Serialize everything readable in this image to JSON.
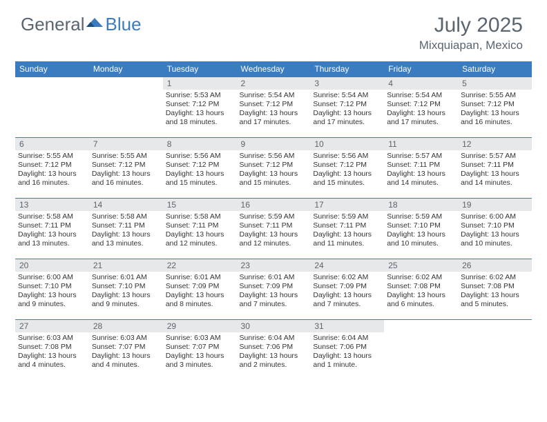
{
  "brand": {
    "part1": "General",
    "part2": "Blue"
  },
  "title": "July 2025",
  "location": "Mixquiapan, Mexico",
  "colors": {
    "header_bg": "#3b7bbf",
    "header_text": "#ffffff",
    "daynum_bg": "#e7e8e9",
    "text_muted": "#5a6570",
    "body_text": "#333333",
    "row_border": "#3b7bbf",
    "page_bg": "#ffffff"
  },
  "fonts": {
    "month_title_pt": 30,
    "location_pt": 17,
    "weekday_pt": 12,
    "daynum_pt": 12,
    "details_pt": 10.5
  },
  "weekdays": [
    "Sunday",
    "Monday",
    "Tuesday",
    "Wednesday",
    "Thursday",
    "Friday",
    "Saturday"
  ],
  "weeks": [
    [
      null,
      null,
      {
        "day": "1",
        "sunrise": "5:53 AM",
        "sunset": "7:12 PM",
        "daylight": "13 hours and 18 minutes."
      },
      {
        "day": "2",
        "sunrise": "5:54 AM",
        "sunset": "7:12 PM",
        "daylight": "13 hours and 17 minutes."
      },
      {
        "day": "3",
        "sunrise": "5:54 AM",
        "sunset": "7:12 PM",
        "daylight": "13 hours and 17 minutes."
      },
      {
        "day": "4",
        "sunrise": "5:54 AM",
        "sunset": "7:12 PM",
        "daylight": "13 hours and 17 minutes."
      },
      {
        "day": "5",
        "sunrise": "5:55 AM",
        "sunset": "7:12 PM",
        "daylight": "13 hours and 16 minutes."
      }
    ],
    [
      {
        "day": "6",
        "sunrise": "5:55 AM",
        "sunset": "7:12 PM",
        "daylight": "13 hours and 16 minutes."
      },
      {
        "day": "7",
        "sunrise": "5:55 AM",
        "sunset": "7:12 PM",
        "daylight": "13 hours and 16 minutes."
      },
      {
        "day": "8",
        "sunrise": "5:56 AM",
        "sunset": "7:12 PM",
        "daylight": "13 hours and 15 minutes."
      },
      {
        "day": "9",
        "sunrise": "5:56 AM",
        "sunset": "7:12 PM",
        "daylight": "13 hours and 15 minutes."
      },
      {
        "day": "10",
        "sunrise": "5:56 AM",
        "sunset": "7:12 PM",
        "daylight": "13 hours and 15 minutes."
      },
      {
        "day": "11",
        "sunrise": "5:57 AM",
        "sunset": "7:11 PM",
        "daylight": "13 hours and 14 minutes."
      },
      {
        "day": "12",
        "sunrise": "5:57 AM",
        "sunset": "7:11 PM",
        "daylight": "13 hours and 14 minutes."
      }
    ],
    [
      {
        "day": "13",
        "sunrise": "5:58 AM",
        "sunset": "7:11 PM",
        "daylight": "13 hours and 13 minutes."
      },
      {
        "day": "14",
        "sunrise": "5:58 AM",
        "sunset": "7:11 PM",
        "daylight": "13 hours and 13 minutes."
      },
      {
        "day": "15",
        "sunrise": "5:58 AM",
        "sunset": "7:11 PM",
        "daylight": "13 hours and 12 minutes."
      },
      {
        "day": "16",
        "sunrise": "5:59 AM",
        "sunset": "7:11 PM",
        "daylight": "13 hours and 12 minutes."
      },
      {
        "day": "17",
        "sunrise": "5:59 AM",
        "sunset": "7:11 PM",
        "daylight": "13 hours and 11 minutes."
      },
      {
        "day": "18",
        "sunrise": "5:59 AM",
        "sunset": "7:10 PM",
        "daylight": "13 hours and 10 minutes."
      },
      {
        "day": "19",
        "sunrise": "6:00 AM",
        "sunset": "7:10 PM",
        "daylight": "13 hours and 10 minutes."
      }
    ],
    [
      {
        "day": "20",
        "sunrise": "6:00 AM",
        "sunset": "7:10 PM",
        "daylight": "13 hours and 9 minutes."
      },
      {
        "day": "21",
        "sunrise": "6:01 AM",
        "sunset": "7:10 PM",
        "daylight": "13 hours and 9 minutes."
      },
      {
        "day": "22",
        "sunrise": "6:01 AM",
        "sunset": "7:09 PM",
        "daylight": "13 hours and 8 minutes."
      },
      {
        "day": "23",
        "sunrise": "6:01 AM",
        "sunset": "7:09 PM",
        "daylight": "13 hours and 7 minutes."
      },
      {
        "day": "24",
        "sunrise": "6:02 AM",
        "sunset": "7:09 PM",
        "daylight": "13 hours and 7 minutes."
      },
      {
        "day": "25",
        "sunrise": "6:02 AM",
        "sunset": "7:08 PM",
        "daylight": "13 hours and 6 minutes."
      },
      {
        "day": "26",
        "sunrise": "6:02 AM",
        "sunset": "7:08 PM",
        "daylight": "13 hours and 5 minutes."
      }
    ],
    [
      {
        "day": "27",
        "sunrise": "6:03 AM",
        "sunset": "7:08 PM",
        "daylight": "13 hours and 4 minutes."
      },
      {
        "day": "28",
        "sunrise": "6:03 AM",
        "sunset": "7:07 PM",
        "daylight": "13 hours and 4 minutes."
      },
      {
        "day": "29",
        "sunrise": "6:03 AM",
        "sunset": "7:07 PM",
        "daylight": "13 hours and 3 minutes."
      },
      {
        "day": "30",
        "sunrise": "6:04 AM",
        "sunset": "7:06 PM",
        "daylight": "13 hours and 2 minutes."
      },
      {
        "day": "31",
        "sunrise": "6:04 AM",
        "sunset": "7:06 PM",
        "daylight": "13 hours and 1 minute."
      },
      null,
      null
    ]
  ],
  "labels": {
    "sunrise": "Sunrise: ",
    "sunset": "Sunset: ",
    "daylight": "Daylight: "
  }
}
